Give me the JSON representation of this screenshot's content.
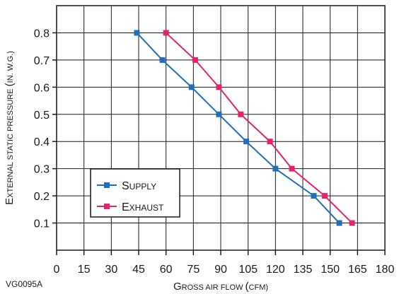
{
  "chart_data": {
    "type": "line",
    "xlabel": "Gross air flow (cfm)",
    "ylabel": "External static pressure (in. w.g.)",
    "xlim": [
      0,
      180
    ],
    "ylim": [
      0,
      0.9
    ],
    "x_ticks": [
      "0",
      "15",
      "30",
      "45",
      "60",
      "75",
      "90",
      "105",
      "120",
      "135",
      "150",
      "165",
      "180"
    ],
    "y_ticks": [
      "0.1",
      "0.2",
      "0.3",
      "0.4",
      "0.5",
      "0.6",
      "0.7",
      "0.8"
    ],
    "grid": true,
    "legend_position": "lower-left",
    "series": [
      {
        "name": "Supply",
        "color": "#1f6fbf",
        "x": [
          44,
          58,
          74,
          89,
          104,
          120,
          141,
          155
        ],
        "y": [
          0.8,
          0.7,
          0.6,
          0.5,
          0.4,
          0.3,
          0.2,
          0.1
        ]
      },
      {
        "name": "Exhaust",
        "color": "#e6226e",
        "x": [
          60,
          76,
          89,
          101,
          117,
          129,
          147,
          162
        ],
        "y": [
          0.8,
          0.7,
          0.6,
          0.5,
          0.4,
          0.3,
          0.2,
          0.1
        ]
      }
    ]
  },
  "figure_id": "VG0095A"
}
